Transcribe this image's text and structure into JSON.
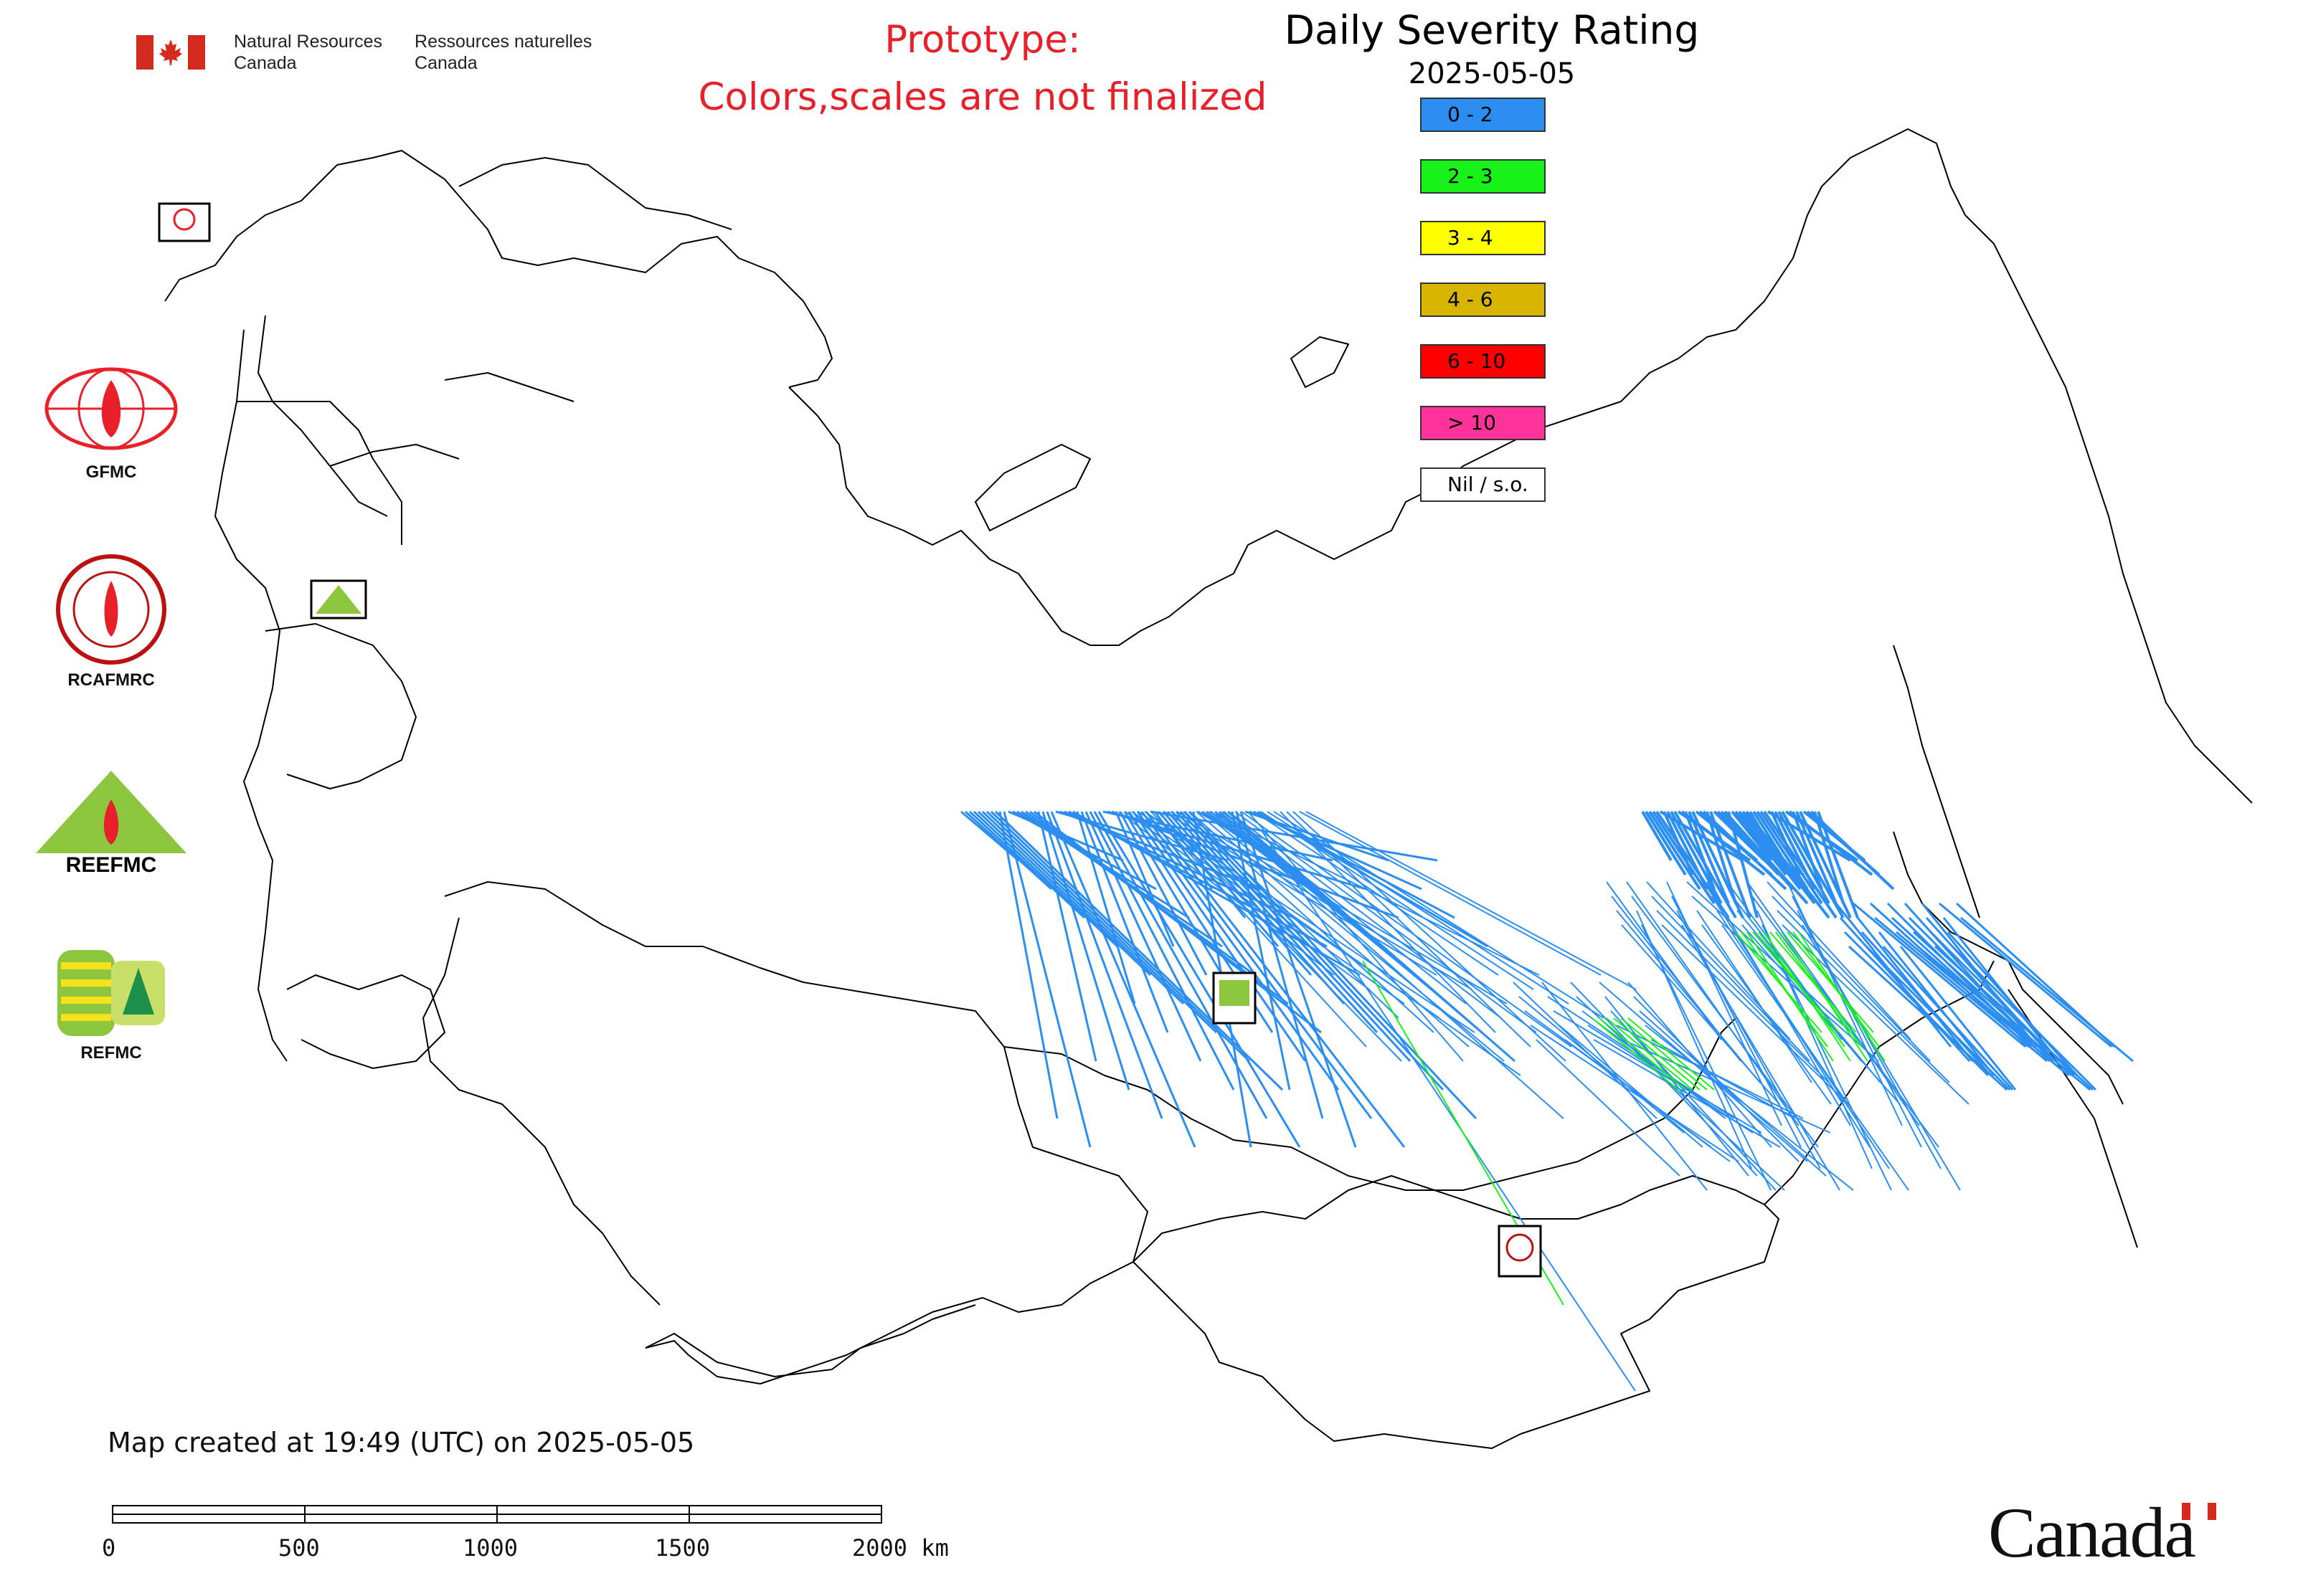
{
  "header": {
    "department_en": [
      "Natural Resources",
      "Canada"
    ],
    "department_fr": [
      "Ressources naturelles",
      "Canada"
    ],
    "prototype_line1": "Prototype:",
    "prototype_line2": "Colors,scales are not finalized"
  },
  "legend": {
    "title": "Daily Severity Rating",
    "date": "2025-05-05",
    "items": [
      {
        "label": "0 - 2",
        "color": "#2b8ef0"
      },
      {
        "label": "2 - 3",
        "color": "#19f219"
      },
      {
        "label": "3 - 4",
        "color": "#ffff00"
      },
      {
        "label": "4 - 6",
        "color": "#d6b400"
      },
      {
        "label": "6 - 10",
        "color": "#ff0000"
      },
      {
        "label": "> 10",
        "color": "#ff3399"
      },
      {
        "label": "Nil / s.o.",
        "color": "#ffffff"
      }
    ]
  },
  "side_logos": [
    {
      "caption": "GFMC",
      "icon": "gfmc-logo"
    },
    {
      "caption": "RCAFMRC",
      "icon": "rcafmrc-logo"
    },
    {
      "caption": "",
      "icon": "reefmc-logo",
      "wordmark": "REEFMC"
    },
    {
      "caption": "REFMC",
      "icon": "refmc-logo"
    }
  ],
  "map_markers": [
    {
      "label": "GFMC",
      "icon": "gfmc-marker-icon"
    },
    {
      "label": "REEFMC",
      "icon": "reefmc-marker-icon"
    },
    {
      "label": "REFMC",
      "icon": "refmc-marker-icon"
    },
    {
      "label": "RCAFMRC",
      "icon": "rcafmrc-marker-icon"
    }
  ],
  "footer": {
    "created_text": "Map created at 19:49 (UTC) on 2025-05-05",
    "scale_labels": [
      "0",
      "500",
      "1000",
      "1500",
      "2000 km"
    ],
    "wordmark": "Canada"
  },
  "colors": {
    "prototype_text": "#e8202a",
    "border_lines": "#000000",
    "fire_low": "#2b8ef0",
    "fire_moderate": "#19f219"
  }
}
